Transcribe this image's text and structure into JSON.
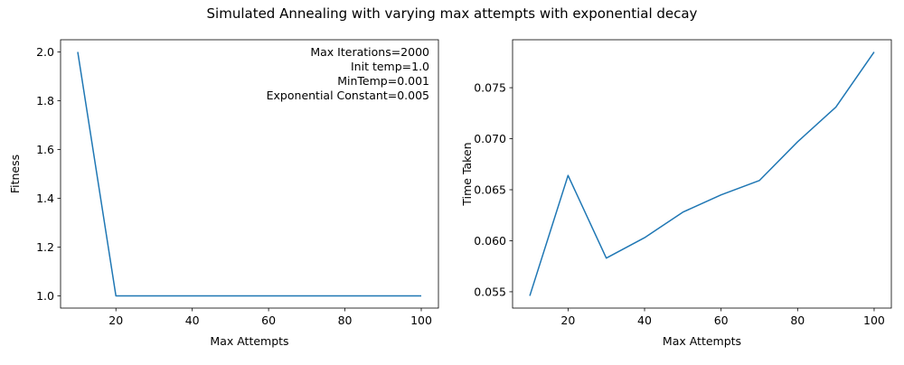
{
  "figure": {
    "suptitle": "Simulated Annealing with varying max attempts with exponential decay"
  },
  "chart_data": [
    {
      "type": "line",
      "title": "",
      "xlabel": "Max Attempts",
      "ylabel": "Fitness",
      "xlim": [
        5.5,
        104.5
      ],
      "ylim": [
        0.95,
        2.05
      ],
      "xticks": [
        20,
        40,
        60,
        80,
        100
      ],
      "yticks": [
        1.0,
        1.2,
        1.4,
        1.6,
        1.8,
        2.0
      ],
      "ytick_format": 1,
      "grid": false,
      "series": [
        {
          "x": [
            10,
            20,
            30,
            40,
            50,
            60,
            70,
            80,
            90,
            100
          ],
          "y": [
            2.0,
            1.0,
            1.0,
            1.0,
            1.0,
            1.0,
            1.0,
            1.0,
            1.0,
            1.0
          ],
          "color": "#1f77b4"
        }
      ],
      "annotation": {
        "lines": [
          "Max Iterations=2000",
          "Init temp=1.0",
          "MinTemp=0.001",
          "Exponential Constant=0.005"
        ],
        "placement": "top-right"
      }
    },
    {
      "type": "line",
      "title": "",
      "xlabel": "Max Attempts",
      "ylabel": "Time Taken",
      "xlim": [
        5.5,
        104.5
      ],
      "ylim": [
        0.0534,
        0.0797
      ],
      "xticks": [
        20,
        40,
        60,
        80,
        100
      ],
      "yticks": [
        0.055,
        0.06,
        0.065,
        0.07,
        0.075
      ],
      "ytick_format": 3,
      "grid": false,
      "series": [
        {
          "x": [
            10,
            20,
            30,
            40,
            50,
            60,
            70,
            80,
            90,
            100
          ],
          "y": [
            0.0546,
            0.0664,
            0.0583,
            0.0603,
            0.0628,
            0.0645,
            0.0659,
            0.0697,
            0.0731,
            0.0785
          ],
          "color": "#1f77b4"
        }
      ]
    }
  ]
}
